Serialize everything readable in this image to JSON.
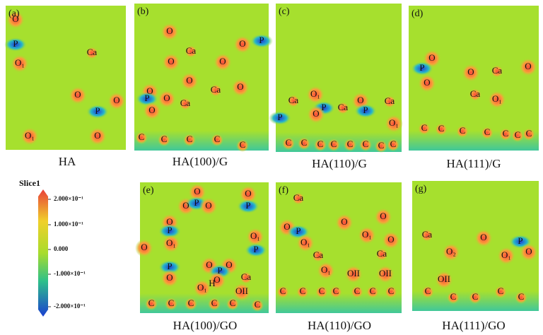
{
  "colorbar": {
    "title": "Slice1",
    "ticks": [
      "2.000×10⁻¹",
      "1.000×10⁻¹",
      "0.000",
      "-1.000×10⁻¹",
      "-2.000×10⁻¹"
    ]
  },
  "panels": [
    {
      "tag": "(a)",
      "caption": "HA",
      "atoms": [
        "O",
        "P",
        "O₁",
        "Ca",
        "O",
        "O",
        "P",
        "O",
        "O₁"
      ]
    },
    {
      "tag": "(b)",
      "caption": "HA(100)/G",
      "atoms": [
        "O",
        "Ca",
        "O",
        "O",
        "O",
        "Ca",
        "O",
        "O",
        "P",
        "O",
        "O",
        "Ca",
        "O",
        "P",
        "C",
        "C",
        "C",
        "C",
        "C"
      ]
    },
    {
      "tag": "(c)",
      "caption": "HA(110)/G",
      "atoms": [
        "Ca",
        "O₁",
        "P",
        "O",
        "Ca",
        "O",
        "P",
        "Ca",
        "P",
        "O₁",
        "C",
        "C",
        "C",
        "C",
        "C",
        "C",
        "C",
        "C"
      ]
    },
    {
      "tag": "(d)",
      "caption": "HA(111)/G",
      "atoms": [
        "O",
        "P",
        "O",
        "O",
        "Ca",
        "O",
        "Ca",
        "O₁",
        "C",
        "C",
        "C",
        "C",
        "C",
        "C",
        "C"
      ]
    },
    {
      "tag": "(e)",
      "caption": "HA(100)/GO",
      "atoms": [
        "O",
        "O",
        "P",
        "O",
        "O",
        "P",
        "O",
        "P",
        "O₁",
        "O₁",
        "P",
        "O",
        "O",
        "O",
        "P",
        "P",
        "O",
        "O₁",
        "H",
        "O",
        "Ca",
        "OII",
        "C",
        "C",
        "C",
        "C",
        "C",
        "C"
      ]
    },
    {
      "tag": "(f)",
      "caption": "HA(110)/GO",
      "atoms": [
        "Ca",
        "O",
        "O",
        "O",
        "P",
        "O₁",
        "O₁",
        "O",
        "Ca",
        "Ca",
        "O₁",
        "OII",
        "OII",
        "C",
        "C",
        "C",
        "C",
        "C",
        "C",
        "C"
      ]
    },
    {
      "tag": "(g)",
      "caption": "HA(111)/GO",
      "atoms": [
        "Ca",
        "O",
        "P",
        "O₂",
        "O₁",
        "O",
        "OII",
        "C",
        "C",
        "C",
        "C",
        "C"
      ]
    }
  ]
}
